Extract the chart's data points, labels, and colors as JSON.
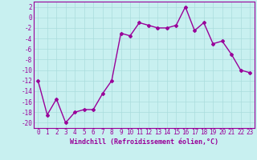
{
  "x": [
    0,
    1,
    2,
    3,
    4,
    5,
    6,
    7,
    8,
    9,
    10,
    11,
    12,
    13,
    14,
    15,
    16,
    17,
    18,
    19,
    20,
    21,
    22,
    23
  ],
  "y": [
    -12,
    -18.5,
    -15.5,
    -20,
    -18,
    -17.5,
    -17.5,
    -14.5,
    -12,
    -3,
    -3.5,
    -1,
    -1.5,
    -2,
    -2,
    -1.5,
    2,
    -2.5,
    -1,
    -5,
    -4.5,
    -7,
    -10,
    -10.5
  ],
  "line_color": "#990099",
  "marker": "D",
  "marker_size": 2.0,
  "bg_color": "#c8f0f0",
  "grid_color": "#aadddd",
  "xlabel": "Windchill (Refroidissement éolien,°C)",
  "xlabel_fontsize": 6,
  "tick_fontsize": 5.5,
  "ylim": [
    -21,
    3
  ],
  "xlim": [
    -0.5,
    23.5
  ],
  "yticks": [
    2,
    0,
    -2,
    -4,
    -6,
    -8,
    -10,
    -12,
    -14,
    -16,
    -18,
    -20
  ],
  "xticks": [
    0,
    1,
    2,
    3,
    4,
    5,
    6,
    7,
    8,
    9,
    10,
    11,
    12,
    13,
    14,
    15,
    16,
    17,
    18,
    19,
    20,
    21,
    22,
    23
  ],
  "linewidth": 1.0
}
